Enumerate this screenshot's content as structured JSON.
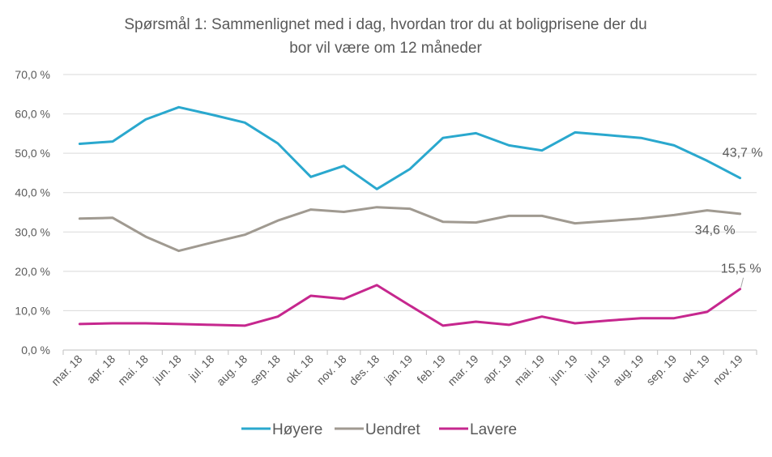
{
  "chart_data": {
    "type": "line",
    "title_line1": "Spørsmål 1: Sammenlignet  med i dag, hvordan tror du at boligprisene  der du",
    "title_line2": "bor vil være om 12 måneder",
    "categories": [
      "mar. 18",
      "apr. 18",
      "mai. 18",
      "jun. 18",
      "jul. 18",
      "aug. 18",
      "sep. 18",
      "okt. 18",
      "nov. 18",
      "des. 18",
      "jan. 19",
      "feb. 19",
      "mar. 19",
      "apr. 19",
      "mai. 19",
      "jun. 19",
      "jul. 19",
      "aug. 19",
      "sep. 19",
      "okt. 19",
      "nov. 19"
    ],
    "y_ticks": [
      "0,0 %",
      "10,0 %",
      "20,0 %",
      "30,0 %",
      "40,0 %",
      "50,0 %",
      "60,0 %",
      "70,0 %"
    ],
    "ylim": [
      0,
      70
    ],
    "grid": true,
    "legend_position": "bottom",
    "series": [
      {
        "name": "Høyere",
        "color": "#2AA8CE",
        "values": [
          52.4,
          53.0,
          58.6,
          61.7,
          59.8,
          57.8,
          52.5,
          44.0,
          46.8,
          40.9,
          46.0,
          53.9,
          55.1,
          52.0,
          50.7,
          55.3,
          54.6,
          53.9,
          52.0,
          48.1,
          43.7
        ],
        "end_label": "43,7 %"
      },
      {
        "name": "Uendret",
        "color": "#A09A91",
        "values": [
          33.4,
          33.6,
          28.8,
          25.2,
          27.3,
          29.3,
          32.9,
          35.7,
          35.1,
          36.3,
          35.9,
          32.6,
          32.4,
          34.1,
          34.1,
          32.2,
          32.8,
          33.4,
          34.3,
          35.5,
          34.6
        ],
        "end_label": "34,6 %"
      },
      {
        "name": "Lavere",
        "color": "#C6278E",
        "values": [
          6.6,
          6.8,
          6.8,
          6.6,
          6.4,
          6.2,
          8.5,
          13.8,
          13.0,
          16.5,
          11.3,
          6.2,
          7.2,
          6.4,
          8.5,
          6.8,
          7.5,
          8.1,
          8.1,
          9.7,
          15.5
        ],
        "end_label": "15,5 %"
      }
    ]
  }
}
